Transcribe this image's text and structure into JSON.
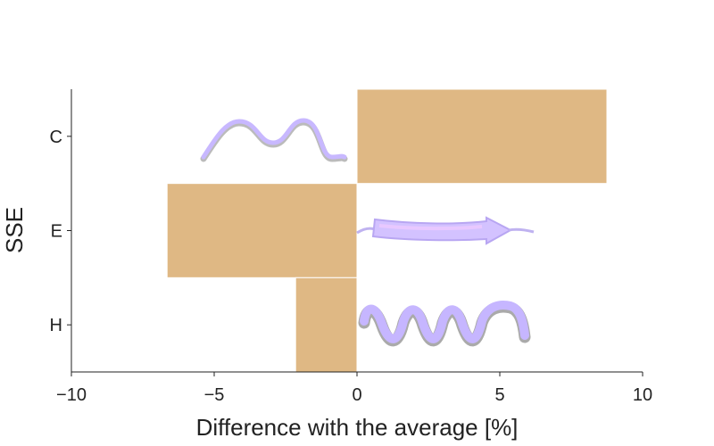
{
  "chart_data": {
    "type": "bar",
    "orientation": "horizontal",
    "categories": [
      "C",
      "E",
      "H"
    ],
    "values": [
      8.75,
      -6.65,
      -2.15
    ],
    "xlabel": "Difference with the average [%]",
    "ylabel": "SSE",
    "xlim": [
      -10,
      10
    ],
    "xticks": [
      "−10",
      "−5",
      "0",
      "5",
      "10"
    ],
    "xtick_values": [
      -10,
      -5,
      0,
      5,
      10
    ],
    "grid": false,
    "bar_color": "#dfb884",
    "illustration_colors": [
      "#c8b8ff",
      "#b9a8f5",
      "#e8c8ff"
    ],
    "illustrations": [
      {
        "category": "C",
        "icon": "coil-icon"
      },
      {
        "category": "E",
        "icon": "beta-strand-arrow-icon"
      },
      {
        "category": "H",
        "icon": "alpha-helix-icon"
      }
    ]
  }
}
